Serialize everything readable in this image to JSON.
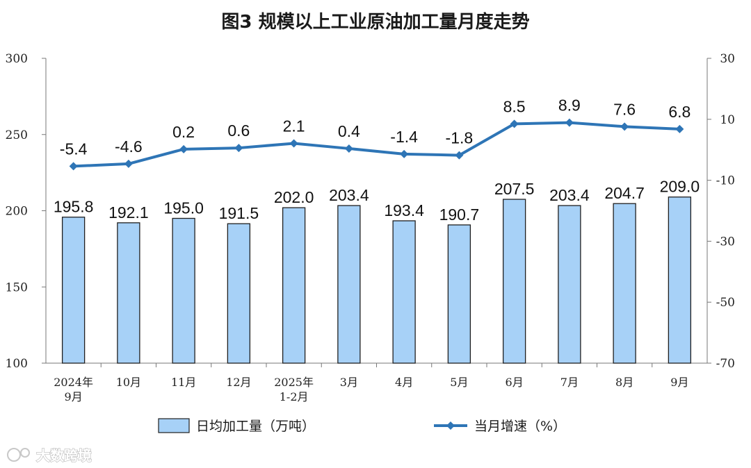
{
  "chart_data": {
    "type": "bar",
    "title": "图3  规模以上工业原油加工量月度走势",
    "categories": [
      [
        "2024年",
        "9月"
      ],
      [
        "10月"
      ],
      [
        "11月"
      ],
      [
        "12月"
      ],
      [
        "2025年",
        "1-2月"
      ],
      [
        "3月"
      ],
      [
        "4月"
      ],
      [
        "5月"
      ],
      [
        "6月"
      ],
      [
        "7月"
      ],
      [
        "8月"
      ],
      [
        "9月"
      ]
    ],
    "series": [
      {
        "name": "日均加工量（万吨）",
        "type": "bar",
        "axis": "left",
        "values": [
          195.8,
          192.1,
          195.0,
          191.5,
          202.0,
          203.4,
          193.4,
          190.7,
          207.5,
          203.4,
          204.7,
          209.0
        ],
        "labels": [
          "195.8",
          "192.1",
          "195.0",
          "191.5",
          "202.0",
          "203.4",
          "193.4",
          "190.7",
          "207.5",
          "203.4",
          "204.7",
          "209.0"
        ]
      },
      {
        "name": "当月增速（%）",
        "type": "line",
        "axis": "right",
        "values": [
          -5.4,
          -4.6,
          0.2,
          0.6,
          2.1,
          0.4,
          -1.4,
          -1.8,
          8.5,
          8.9,
          7.6,
          6.8
        ],
        "labels": [
          "-5.4",
          "-4.6",
          "0.2",
          "0.6",
          "2.1",
          "0.4",
          "-1.4",
          "-1.8",
          "8.5",
          "8.9",
          "7.6",
          "6.8"
        ]
      }
    ],
    "y_left": {
      "min": 100,
      "max": 300,
      "ticks": [
        "300",
        "250",
        "200",
        "150",
        "100"
      ]
    },
    "y_right": {
      "min": -70,
      "max": 30,
      "ticks": [
        "30",
        "10",
        "-10",
        "-30",
        "-50",
        "-70"
      ]
    },
    "grid": false,
    "legend": "bottom",
    "colors": {
      "bar_fill": "#a7d1f7",
      "bar_stroke": "#1f1f1f",
      "line": "#2e75b6"
    }
  },
  "watermark": "大数跨境"
}
